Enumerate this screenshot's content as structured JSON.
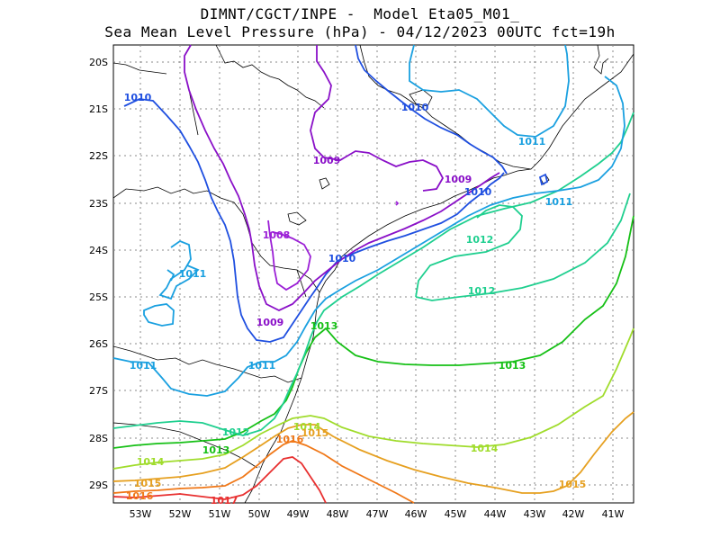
{
  "title_line1": "DIMNT/CGCT/INPE -  Model Eta05_M01_",
  "title_line2": "Sea Mean Level Pressure (hPa) - 04/12/2023 00UTC fct=19h",
  "lat_labels": [
    "20S",
    "21S",
    "22S",
    "23S",
    "24S",
    "25S",
    "26S",
    "27S",
    "28S",
    "29S"
  ],
  "lon_labels": [
    "53W",
    "52W",
    "51W",
    "50W",
    "49W",
    "48W",
    "47W",
    "46W",
    "45W",
    "44W",
    "43W",
    "42W",
    "41W"
  ],
  "contour_colors": {
    "1008": "#9b1fd6",
    "1009": "#8a10c8",
    "1010": "#1f4fe0",
    "1011": "#1aa0e0",
    "1012": "#1fcf8f",
    "1013": "#16c016",
    "1014": "#a0dc2c",
    "1015": "#e6a020",
    "1016": "#f07818",
    "1017": "#e83030"
  },
  "contour_labels": [
    {
      "text": "1010",
      "level": "1010"
    },
    {
      "text": "1010",
      "level": "1010"
    },
    {
      "text": "1011",
      "level": "1011"
    },
    {
      "text": "1009",
      "level": "1009"
    },
    {
      "text": "1009",
      "level": "1009"
    },
    {
      "text": "1010",
      "level": "1010"
    },
    {
      "text": "1011",
      "level": "1011"
    },
    {
      "text": "1008",
      "level": "1008"
    },
    {
      "text": "1012",
      "level": "1012"
    },
    {
      "text": "1011",
      "level": "1011"
    },
    {
      "text": "1010",
      "level": "1010"
    },
    {
      "text": "1012",
      "level": "1012"
    },
    {
      "text": "1009",
      "level": "1009"
    },
    {
      "text": "1013",
      "level": "1013"
    },
    {
      "text": "1011",
      "level": "1011"
    },
    {
      "text": "1011",
      "level": "1011"
    },
    {
      "text": "1013",
      "level": "1013"
    },
    {
      "text": "1012",
      "level": "1012"
    },
    {
      "text": "1013",
      "level": "1013"
    },
    {
      "text": "1014",
      "level": "1014"
    },
    {
      "text": "1015",
      "level": "1015"
    },
    {
      "text": "1016",
      "level": "1016"
    },
    {
      "text": "1014",
      "level": "1014"
    },
    {
      "text": "1014",
      "level": "1014"
    },
    {
      "text": "1015",
      "level": "1015"
    },
    {
      "text": "1015",
      "level": "1015"
    },
    {
      "text": "1016",
      "level": "1016"
    },
    {
      "text": "1017",
      "level": "1017"
    }
  ]
}
